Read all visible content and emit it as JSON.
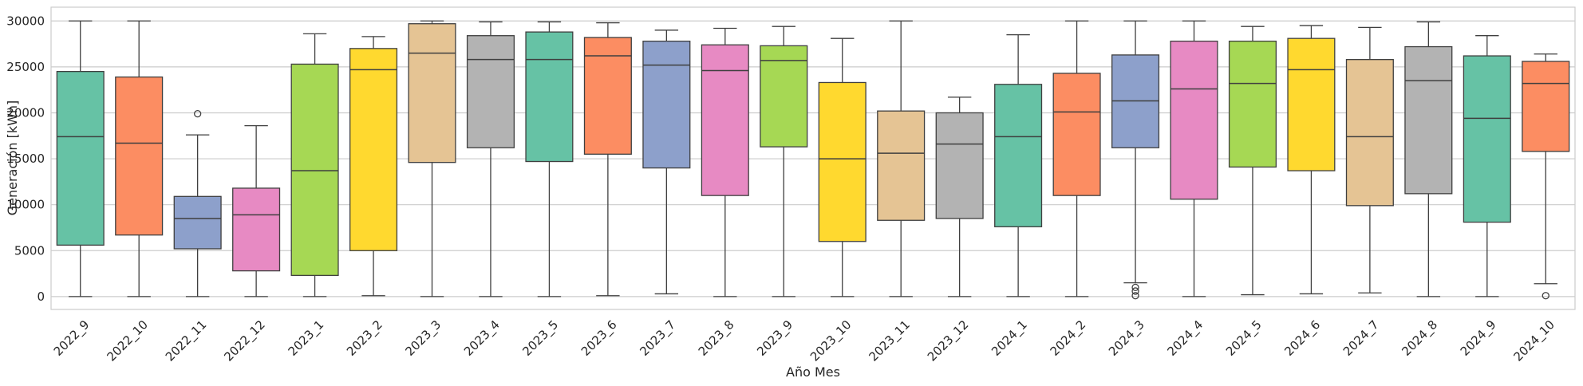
{
  "chart_data": {
    "type": "box",
    "xlabel": "Año Mes",
    "ylabel": "Generación [kWh]",
    "ylim": [
      -1400,
      31500
    ],
    "yticks": [
      0,
      5000,
      10000,
      15000,
      20000,
      25000,
      30000
    ],
    "grid": "horizontal",
    "palette": [
      "#66c2a5",
      "#fc8d62",
      "#8da0cb",
      "#e78ac3",
      "#a6d854",
      "#ffd92f",
      "#e5c494",
      "#b3b3b3"
    ],
    "categories": [
      "2022_9",
      "2022_10",
      "2022_11",
      "2022_12",
      "2023_1",
      "2023_2",
      "2023_3",
      "2023_4",
      "2023_5",
      "2023_6",
      "2023_7",
      "2023_8",
      "2023_9",
      "2023_10",
      "2023_11",
      "2023_12",
      "2024_1",
      "2024_2",
      "2024_3",
      "2024_4",
      "2024_5",
      "2024_6",
      "2024_7",
      "2024_8",
      "2024_9",
      "2024_10"
    ],
    "boxes": [
      {
        "min": 0,
        "q1": 5600,
        "median": 17400,
        "q3": 24500,
        "max": 30000,
        "outliers": []
      },
      {
        "min": 0,
        "q1": 6700,
        "median": 16700,
        "q3": 23900,
        "max": 30000,
        "outliers": []
      },
      {
        "min": 0,
        "q1": 5200,
        "median": 8500,
        "q3": 10900,
        "max": 17600,
        "outliers": [
          19900
        ]
      },
      {
        "min": 0,
        "q1": 2800,
        "median": 8900,
        "q3": 11800,
        "max": 18600,
        "outliers": []
      },
      {
        "min": 0,
        "q1": 2300,
        "median": 13700,
        "q3": 25300,
        "max": 28600,
        "outliers": []
      },
      {
        "min": 100,
        "q1": 5000,
        "median": 24700,
        "q3": 27000,
        "max": 28300,
        "outliers": []
      },
      {
        "min": 0,
        "q1": 14600,
        "median": 26500,
        "q3": 29700,
        "max": 30000,
        "outliers": []
      },
      {
        "min": 0,
        "q1": 16200,
        "median": 25800,
        "q3": 28400,
        "max": 29900,
        "outliers": []
      },
      {
        "min": 0,
        "q1": 14700,
        "median": 25800,
        "q3": 28800,
        "max": 29900,
        "outliers": []
      },
      {
        "min": 100,
        "q1": 15500,
        "median": 26200,
        "q3": 28200,
        "max": 29800,
        "outliers": []
      },
      {
        "min": 300,
        "q1": 14000,
        "median": 25200,
        "q3": 27800,
        "max": 29000,
        "outliers": []
      },
      {
        "min": 0,
        "q1": 11000,
        "median": 24600,
        "q3": 27400,
        "max": 29200,
        "outliers": []
      },
      {
        "min": 0,
        "q1": 16300,
        "median": 25700,
        "q3": 27300,
        "max": 29400,
        "outliers": []
      },
      {
        "min": 0,
        "q1": 6000,
        "median": 15000,
        "q3": 23300,
        "max": 28100,
        "outliers": []
      },
      {
        "min": 0,
        "q1": 8300,
        "median": 15600,
        "q3": 20200,
        "max": 30000,
        "outliers": []
      },
      {
        "min": 0,
        "q1": 8500,
        "median": 16600,
        "q3": 20000,
        "max": 21700,
        "outliers": []
      },
      {
        "min": 0,
        "q1": 7600,
        "median": 17400,
        "q3": 23100,
        "max": 28500,
        "outliers": []
      },
      {
        "min": 0,
        "q1": 11000,
        "median": 20100,
        "q3": 24300,
        "max": 30000,
        "outliers": []
      },
      {
        "min": 1500,
        "q1": 16200,
        "median": 21300,
        "q3": 26300,
        "max": 30000,
        "outliers": [
          1000,
          600,
          100
        ]
      },
      {
        "min": 0,
        "q1": 10600,
        "median": 22600,
        "q3": 27800,
        "max": 30000,
        "outliers": []
      },
      {
        "min": 200,
        "q1": 14100,
        "median": 23200,
        "q3": 27800,
        "max": 29400,
        "outliers": []
      },
      {
        "min": 300,
        "q1": 13700,
        "median": 24700,
        "q3": 28100,
        "max": 29500,
        "outliers": []
      },
      {
        "min": 400,
        "q1": 9900,
        "median": 17400,
        "q3": 25800,
        "max": 29300,
        "outliers": []
      },
      {
        "min": 0,
        "q1": 11200,
        "median": 23500,
        "q3": 27200,
        "max": 29900,
        "outliers": []
      },
      {
        "min": 0,
        "q1": 8100,
        "median": 19400,
        "q3": 26200,
        "max": 28400,
        "outliers": []
      },
      {
        "min": 1400,
        "q1": 15800,
        "median": 23200,
        "q3": 25600,
        "max": 26400,
        "outliers": [
          100
        ]
      }
    ]
  }
}
